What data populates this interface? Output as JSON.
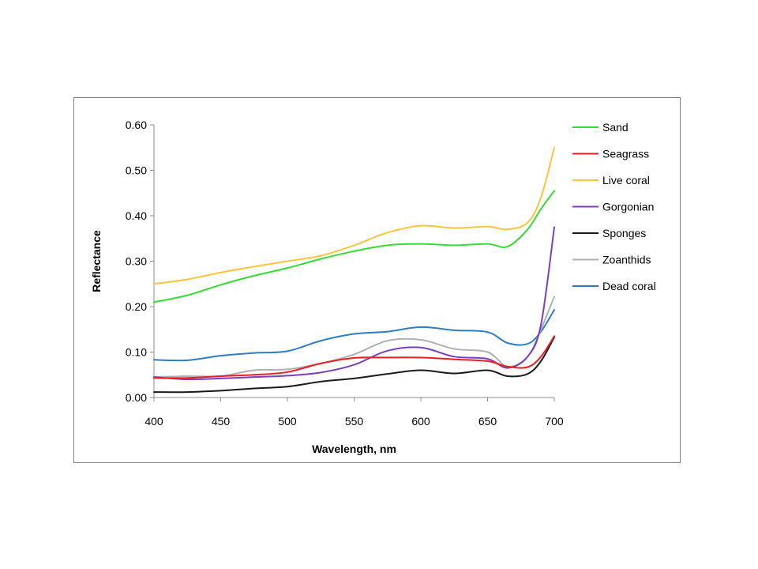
{
  "chart_data": {
    "type": "line",
    "xlabel": "Wavelength, nm",
    "ylabel": "Reflectance",
    "xlim": [
      400,
      700
    ],
    "ylim": [
      0,
      0.6
    ],
    "xticks": [
      "400",
      "450",
      "500",
      "550",
      "600",
      "650",
      "700"
    ],
    "yticks": [
      "0.00",
      "0.10",
      "0.20",
      "0.30",
      "0.40",
      "0.50",
      "0.60"
    ],
    "grid": false,
    "legend_position": "right",
    "x": [
      400,
      425,
      450,
      475,
      500,
      525,
      550,
      575,
      600,
      625,
      650,
      665,
      680,
      690,
      700
    ],
    "series": [
      {
        "name": "Sand",
        "color": "#33dd33",
        "values": [
          0.21,
          0.225,
          0.248,
          0.268,
          0.285,
          0.305,
          0.322,
          0.335,
          0.338,
          0.335,
          0.338,
          0.332,
          0.37,
          0.415,
          0.455
        ]
      },
      {
        "name": "Seagrass",
        "color": "#ee1c24",
        "values": [
          0.043,
          0.043,
          0.047,
          0.05,
          0.056,
          0.075,
          0.087,
          0.088,
          0.088,
          0.084,
          0.08,
          0.068,
          0.067,
          0.09,
          0.135
        ]
      },
      {
        "name": "Live coral",
        "color": "#ffc43d",
        "values": [
          0.25,
          0.26,
          0.275,
          0.288,
          0.3,
          0.312,
          0.335,
          0.363,
          0.378,
          0.373,
          0.376,
          0.37,
          0.385,
          0.44,
          0.55
        ]
      },
      {
        "name": "Gorgonian",
        "color": "#7b3fbe",
        "values": [
          0.045,
          0.04,
          0.042,
          0.045,
          0.048,
          0.055,
          0.072,
          0.103,
          0.11,
          0.09,
          0.085,
          0.065,
          0.09,
          0.16,
          0.375
        ]
      },
      {
        "name": "Sponges",
        "color": "#1a1a1a",
        "values": [
          0.012,
          0.012,
          0.015,
          0.02,
          0.024,
          0.035,
          0.042,
          0.052,
          0.06,
          0.053,
          0.06,
          0.047,
          0.052,
          0.08,
          0.133
        ]
      },
      {
        "name": "Zoanthids",
        "color": "#b0b0b0",
        "values": [
          0.045,
          0.047,
          0.047,
          0.06,
          0.062,
          0.075,
          0.095,
          0.125,
          0.127,
          0.107,
          0.1,
          0.068,
          0.09,
          0.15,
          0.222
        ]
      },
      {
        "name": "Dead coral",
        "color": "#2e7dc4",
        "values": [
          0.083,
          0.082,
          0.092,
          0.098,
          0.102,
          0.125,
          0.14,
          0.145,
          0.155,
          0.148,
          0.144,
          0.12,
          0.118,
          0.145,
          0.193
        ]
      }
    ]
  }
}
